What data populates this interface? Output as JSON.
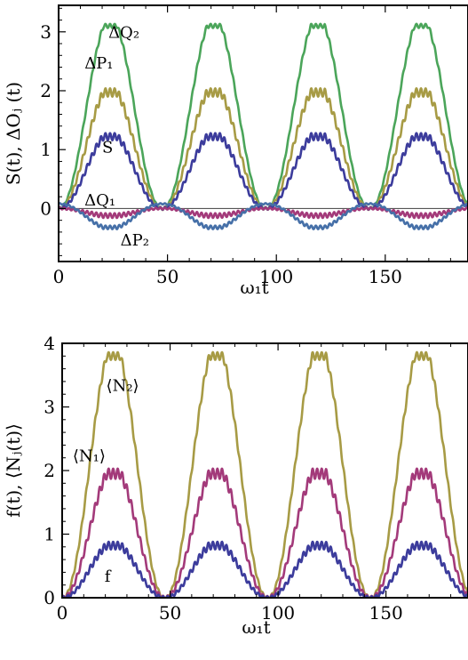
{
  "chart_data": [
    {
      "type": "line",
      "xlabel": "ω₁t",
      "ylabel": "S(t), ΔOⱼ (t)",
      "xlim": [
        0,
        188
      ],
      "ylim": [
        -0.9,
        3.45
      ],
      "xticks": [
        "0",
        "50",
        "100",
        "150"
      ],
      "xtick_values": [
        0,
        50,
        100,
        150
      ],
      "yticks": [
        "0",
        "1",
        "2",
        "3"
      ],
      "ytick_values": [
        0,
        1,
        2,
        3
      ],
      "period": 47.6,
      "ripple_period": 2.1,
      "annotations": [
        {
          "text": "ΔQ₂",
          "x": 30,
          "y": 2.9
        },
        {
          "text": "ΔP₁",
          "x": 18.5,
          "y": 2.38
        },
        {
          "text": "S",
          "x": 22.5,
          "y": 0.95
        },
        {
          "text": "ΔQ₁",
          "x": 19,
          "y": 0.05
        },
        {
          "text": "ΔP₂",
          "x": 35,
          "y": -0.63
        }
      ],
      "series": [
        {
          "name": "ΔQ₂",
          "color": "#4ba55a",
          "peak": 3.1,
          "offset": 0,
          "ripple": 0.035,
          "shape": "bump"
        },
        {
          "name": "ΔP₁",
          "color": "#a79b45",
          "peak": 1.97,
          "offset": 0,
          "ripple": 0.07,
          "shape": "bump"
        },
        {
          "name": "S",
          "color": "#3c3c9c",
          "peak": 1.22,
          "offset": 0,
          "ripple": 0.06,
          "shape": "bump"
        },
        {
          "name": "ΔQ₁",
          "color": "#a33a7a",
          "peak": -0.12,
          "offset": 0,
          "ripple": 0.04,
          "shape": "dip"
        },
        {
          "name": "ΔP₂",
          "color": "#4670a8",
          "peak": -0.32,
          "offset": 0.08,
          "ripple": 0.03,
          "shape": "dip"
        }
      ]
    },
    {
      "type": "line",
      "xlabel": "ω₁t",
      "ylabel": "f(t), ⟨Nⱼ(t)⟩",
      "xlim": [
        0,
        188
      ],
      "ylim": [
        0,
        4
      ],
      "xticks": [
        "0",
        "50",
        "100",
        "150"
      ],
      "xtick_values": [
        0,
        50,
        100,
        150
      ],
      "yticks": [
        "0",
        "1",
        "2",
        "3",
        "4"
      ],
      "ytick_values": [
        0,
        1,
        2,
        3,
        4
      ],
      "period": 47.6,
      "ripple_period": 2.1,
      "annotations": [
        {
          "text": "⟨N₂⟩",
          "x": 28,
          "y": 3.25
        },
        {
          "text": "⟨N₁⟩",
          "x": 12.5,
          "y": 2.15
        },
        {
          "text": "f",
          "x": 21,
          "y": 0.25
        }
      ],
      "series": [
        {
          "name": "⟨N₂⟩",
          "color": "#a79b45",
          "peak": 3.8,
          "offset": 0,
          "ripple": 0.06,
          "shape": "bump"
        },
        {
          "name": "⟨N₁⟩",
          "color": "#a33a7a",
          "peak": 1.95,
          "offset": 0,
          "ripple": 0.08,
          "shape": "bump"
        },
        {
          "name": "f",
          "color": "#3c3c9c",
          "peak": 0.82,
          "offset": 0,
          "ripple": 0.06,
          "shape": "bump"
        }
      ]
    }
  ]
}
